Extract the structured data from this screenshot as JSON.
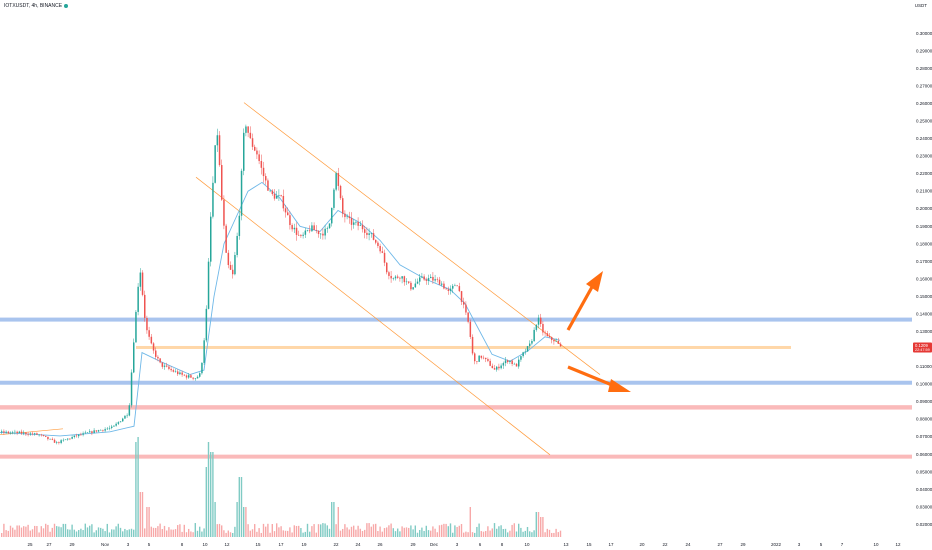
{
  "legend": {
    "symbol": "IOTXUSDT, 4h, BINANCE",
    "status_color": "#26a69a"
  },
  "currency": "USDT",
  "colors": {
    "up": "#26a69a",
    "down": "#ef5350",
    "vol_up": "#80cbc4",
    "vol_down": "#f7a8a8",
    "ma": "#6fb8e8",
    "channel": "#ff9b3d",
    "support_blue": "#a9c4ee",
    "zone_red": "#f9b2b2",
    "zone_orange": "#ffd7a8",
    "arrow": "#ff6d10",
    "badge": "#e53935"
  },
  "chart_data": {
    "type": "candlestick",
    "title": "",
    "ylabel": "USDT",
    "ylim": [
      0.0174,
      0.3099
    ],
    "price_label": "0.1209",
    "price_sublabel": "22:47:59",
    "y_ticks": [
      "0.30000",
      "0.29000",
      "0.28000",
      "0.27000",
      "0.26000",
      "0.25000",
      "0.24000",
      "0.23000",
      "0.22000",
      "0.21000",
      "0.20000",
      "0.19000",
      "0.18000",
      "0.17000",
      "0.16000",
      "0.15000",
      "0.14000",
      "0.13000",
      "0.12000",
      "0.11000",
      "0.10000",
      "0.09000",
      "0.08000",
      "0.07000",
      "0.06000",
      "0.05000",
      "0.04000",
      "0.03000",
      "0.02000"
    ],
    "x_ticks": [
      "25",
      "27",
      "29",
      "Nov",
      "3",
      "5",
      "8",
      "10",
      "12",
      "15",
      "17",
      "19",
      "22",
      "24",
      "26",
      "29",
      "Dec",
      "3",
      "6",
      "8",
      "10",
      "13",
      "15",
      "17",
      "20",
      "22",
      "24",
      "27",
      "29",
      "2022",
      "3",
      "5",
      "7",
      "10",
      "12"
    ],
    "price_path": [
      [
        0,
        0.0725
      ],
      [
        20,
        0.0722
      ],
      [
        38,
        0.0712
      ],
      [
        56,
        0.0665
      ],
      [
        74,
        0.0702
      ],
      [
        96,
        0.0735
      ],
      [
        112,
        0.0752
      ],
      [
        128,
        0.0838
      ],
      [
        133,
        0.125
      ],
      [
        139,
        0.168
      ],
      [
        145,
        0.1325
      ],
      [
        152,
        0.1195
      ],
      [
        160,
        0.111
      ],
      [
        170,
        0.108
      ],
      [
        182,
        0.105
      ],
      [
        195,
        0.1035
      ],
      [
        200,
        0.106
      ],
      [
        205,
        0.135
      ],
      [
        210,
        0.195
      ],
      [
        216,
        0.248
      ],
      [
        221,
        0.205
      ],
      [
        226,
        0.169
      ],
      [
        232,
        0.162
      ],
      [
        238,
        0.192
      ],
      [
        244,
        0.251
      ],
      [
        250,
        0.238
      ],
      [
        256,
        0.232
      ],
      [
        262,
        0.22
      ],
      [
        270,
        0.208
      ],
      [
        280,
        0.206
      ],
      [
        290,
        0.191
      ],
      [
        300,
        0.183
      ],
      [
        310,
        0.189
      ],
      [
        320,
        0.186
      ],
      [
        328,
        0.188
      ],
      [
        335,
        0.221
      ],
      [
        342,
        0.197
      ],
      [
        350,
        0.192
      ],
      [
        360,
        0.19
      ],
      [
        370,
        0.185
      ],
      [
        380,
        0.177
      ],
      [
        386,
        0.165
      ],
      [
        392,
        0.16
      ],
      [
        400,
        0.162
      ],
      [
        410,
        0.155
      ],
      [
        420,
        0.16
      ],
      [
        430,
        0.16
      ],
      [
        440,
        0.158
      ],
      [
        448,
        0.152
      ],
      [
        456,
        0.158
      ],
      [
        462,
        0.146
      ],
      [
        468,
        0.134
      ],
      [
        473,
        0.112
      ],
      [
        480,
        0.116
      ],
      [
        488,
        0.112
      ],
      [
        494,
        0.108
      ],
      [
        500,
        0.111
      ],
      [
        508,
        0.114
      ],
      [
        515,
        0.11
      ],
      [
        522,
        0.117
      ],
      [
        530,
        0.123
      ],
      [
        537,
        0.138
      ],
      [
        542,
        0.13
      ],
      [
        548,
        0.126
      ],
      [
        554,
        0.125
      ],
      [
        560,
        0.1209
      ]
    ],
    "ma_path": [
      [
        0,
        0.0725
      ],
      [
        60,
        0.0705
      ],
      [
        110,
        0.0728
      ],
      [
        134,
        0.076
      ],
      [
        142,
        0.118
      ],
      [
        160,
        0.113
      ],
      [
        190,
        0.1055
      ],
      [
        204,
        0.108
      ],
      [
        214,
        0.15
      ],
      [
        224,
        0.18
      ],
      [
        236,
        0.195
      ],
      [
        248,
        0.21
      ],
      [
        262,
        0.215
      ],
      [
        280,
        0.206
      ],
      [
        300,
        0.19
      ],
      [
        320,
        0.187
      ],
      [
        338,
        0.199
      ],
      [
        360,
        0.192
      ],
      [
        380,
        0.182
      ],
      [
        400,
        0.168
      ],
      [
        425,
        0.16
      ],
      [
        450,
        0.154
      ],
      [
        465,
        0.146
      ],
      [
        478,
        0.132
      ],
      [
        492,
        0.117
      ],
      [
        510,
        0.113
      ],
      [
        528,
        0.119
      ],
      [
        545,
        0.127
      ],
      [
        560,
        0.125
      ]
    ],
    "volume_spikes": [
      [
        135,
        0.95
      ],
      [
        138,
        1.0
      ],
      [
        141,
        0.45
      ],
      [
        147,
        0.3
      ],
      [
        205,
        0.7
      ],
      [
        208,
        0.95
      ],
      [
        211,
        0.85
      ],
      [
        214,
        0.35
      ],
      [
        236,
        0.35
      ],
      [
        240,
        0.6
      ],
      [
        244,
        0.3
      ],
      [
        332,
        0.35
      ],
      [
        337,
        0.3
      ],
      [
        470,
        0.3
      ],
      [
        537,
        0.25
      ],
      [
        541,
        0.2
      ]
    ],
    "volume_scale": "relative 0-1",
    "overlays": {
      "support_lines": [
        0.1368,
        0.1008
      ],
      "orange_level": 0.1209,
      "red_zones": [
        [
          0.088,
          0.0855
        ],
        [
          0.0598,
          0.0578
        ]
      ],
      "channel_upper": [
        [
          244,
          0.2605
        ],
        [
          566,
          0.122
        ]
      ],
      "channel_lower": [
        [
          196,
          0.218
        ],
        [
          550,
          0.0597
        ]
      ]
    }
  }
}
